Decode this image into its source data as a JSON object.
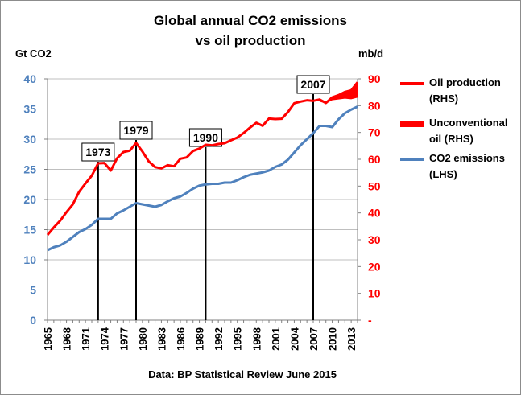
{
  "chart_data": {
    "type": "line",
    "title": "Global annual CO2 emissions",
    "subtitle": "vs oil production",
    "ylabel_left": "Gt CO2",
    "ylabel_right": "mb/d",
    "footer": "Data: BP Statistical Review June 2015",
    "ylim_left": [
      0,
      40
    ],
    "ylim_right": [
      0,
      90
    ],
    "yticks_left": [
      "0",
      "5",
      "10",
      "15",
      "20",
      "25",
      "30",
      "35",
      "40"
    ],
    "yticks_right": [
      "-",
      "10",
      "20",
      "30",
      "40",
      "50",
      "60",
      "70",
      "80",
      "90"
    ],
    "xticks": [
      "1965",
      "1968",
      "1971",
      "1974",
      "1977",
      "1980",
      "1983",
      "1986",
      "1989",
      "1992",
      "1995",
      "1998",
      "2001",
      "2004",
      "2007",
      "2010",
      "2013"
    ],
    "xlim": [
      1965,
      2014
    ],
    "grid": "horizontal",
    "legend_position": "right",
    "colors": {
      "oil": "#ff0000",
      "co2": "#4f81bd"
    },
    "series": [
      {
        "name": "Oil production (RHS)",
        "axis": "right",
        "x": [
          1965,
          1966,
          1967,
          1968,
          1969,
          1970,
          1971,
          1972,
          1973,
          1974,
          1975,
          1976,
          1977,
          1978,
          1979,
          1980,
          1981,
          1982,
          1983,
          1984,
          1985,
          1986,
          1987,
          1988,
          1989,
          1990,
          1991,
          1992,
          1993,
          1994,
          1995,
          1996,
          1997,
          1998,
          1999,
          2000,
          2001,
          2002,
          2003,
          2004,
          2005,
          2006,
          2007,
          2008,
          2009,
          2010,
          2011,
          2012,
          2013,
          2014
        ],
        "values": [
          31.8,
          34.6,
          37.1,
          40.3,
          43.2,
          47.9,
          51.0,
          53.9,
          58.5,
          58.6,
          55.8,
          60.4,
          62.7,
          63.2,
          66.1,
          62.9,
          59.2,
          57.1,
          56.6,
          57.8,
          57.4,
          60.2,
          60.7,
          63.1,
          64.0,
          65.4,
          65.2,
          65.7,
          66.0,
          67.1,
          68.1,
          69.8,
          71.8,
          73.6,
          72.5,
          75.2,
          75.0,
          75.1,
          77.6,
          80.9,
          81.5,
          82.0,
          81.8,
          82.3,
          81.0,
          83.1,
          83.9,
          85.1,
          85.7,
          88.7
        ]
      },
      {
        "name": "Unconventional oil (RHS)",
        "axis": "right",
        "x": [
          2008,
          2009,
          2010,
          2011,
          2012,
          2013,
          2014
        ],
        "lower": [
          81.5,
          80.8,
          82.0,
          82.3,
          82.6,
          82.4,
          83.0
        ],
        "upper": [
          82.3,
          81.0,
          83.1,
          83.9,
          85.1,
          85.7,
          88.7
        ]
      },
      {
        "name": "CO2 emissions (LHS)",
        "axis": "left",
        "x": [
          1965,
          1966,
          1967,
          1968,
          1969,
          1970,
          1971,
          1972,
          1973,
          1974,
          1975,
          1976,
          1977,
          1978,
          1979,
          1980,
          1981,
          1982,
          1983,
          1984,
          1985,
          1986,
          1987,
          1988,
          1989,
          1990,
          1991,
          1992,
          1993,
          1994,
          1995,
          1996,
          1997,
          1998,
          1999,
          2000,
          2001,
          2002,
          2003,
          2004,
          2005,
          2006,
          2007,
          2008,
          2009,
          2010,
          2011,
          2012,
          2013,
          2014
        ],
        "values": [
          11.6,
          12.1,
          12.4,
          13.0,
          13.8,
          14.6,
          15.1,
          15.8,
          16.8,
          16.8,
          16.8,
          17.7,
          18.2,
          18.8,
          19.4,
          19.2,
          19.0,
          18.8,
          19.1,
          19.7,
          20.2,
          20.5,
          21.1,
          21.8,
          22.3,
          22.5,
          22.6,
          22.6,
          22.8,
          22.8,
          23.2,
          23.7,
          24.1,
          24.3,
          24.5,
          24.8,
          25.4,
          25.8,
          26.6,
          27.8,
          29.0,
          30.0,
          31.0,
          32.2,
          32.2,
          32.0,
          33.3,
          34.3,
          34.9,
          35.4
        ]
      }
    ],
    "annotations": [
      {
        "label": "1973",
        "x": 1973
      },
      {
        "label": "1979",
        "x": 1979
      },
      {
        "label": "1990",
        "x": 1990
      },
      {
        "label": "2007",
        "x": 2007
      }
    ]
  },
  "legend": {
    "oil_line1": "Oil production",
    "oil_line2": "(RHS)",
    "unconv_line1": "Unconventional",
    "unconv_line2": "oil (RHS)",
    "co2_line1": "CO2 emissions",
    "co2_line2": "(LHS)"
  }
}
